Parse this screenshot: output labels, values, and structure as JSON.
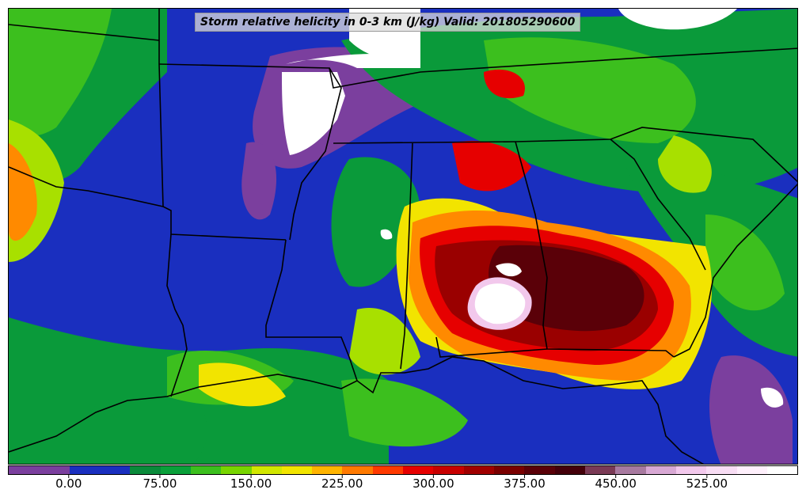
{
  "map": {
    "title": "Storm relative helicity in 0-3 km (J/kg) Valid: 201805290600",
    "field": "Storm relative helicity in 0-3 km",
    "units": "J/kg",
    "valid_time": "201805290600",
    "region": "Southeastern United States / Gulf of Mexico",
    "colors": {
      "purple": "#7b3f9e",
      "dark_blue": "#1a2fbf",
      "green": "#0a9a3a",
      "light_green": "#3cbf1e",
      "lime": "#a8e000",
      "yellow": "#f2e400",
      "orange": "#ff8a00",
      "red": "#e60000",
      "dark_red": "#9a0000",
      "maroon": "#5a0008",
      "pink": "#f2c8ec",
      "white": "#ffffff",
      "boundary": "#000000"
    }
  },
  "colorbar": {
    "min": -50,
    "max": 600,
    "step": 25,
    "tick_labels": [
      "0.00",
      "75.00",
      "150.00",
      "225.00",
      "300.00",
      "375.00",
      "450.00",
      "525.00"
    ],
    "tick_values": [
      0,
      75,
      150,
      225,
      300,
      375,
      450,
      525
    ],
    "colors": [
      "#7b3f9e",
      "#7b3f9e",
      "#1a2fbf",
      "#1a2fbf",
      "#0a8a3a",
      "#0aa03a",
      "#3cbf1e",
      "#78d400",
      "#d2e600",
      "#f2e400",
      "#ffb400",
      "#ff7a00",
      "#ff3a00",
      "#e60000",
      "#c80000",
      "#a00000",
      "#7a0000",
      "#5a0008",
      "#44000a",
      "#7a3a55",
      "#a87aa0",
      "#d8a8d4",
      "#f2c8ec",
      "#f8ddf4",
      "#fff0fc",
      "#ffffff"
    ]
  }
}
